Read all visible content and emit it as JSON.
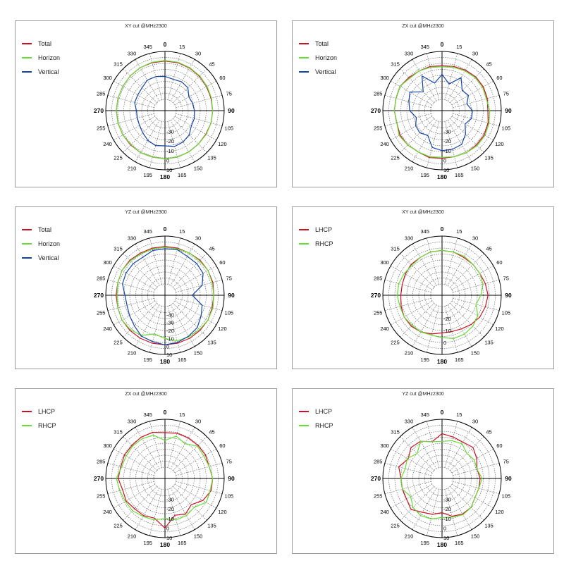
{
  "panels": [
    {
      "title": "XY cut @MHz2300",
      "legend": [
        {
          "label": "Total",
          "color": "#cc1122"
        },
        {
          "label": "Horizon",
          "color": "#66dd33"
        },
        {
          "label": "Vertical",
          "color": "#1144aa"
        }
      ]
    },
    {
      "title": "ZX cut @MHz2300",
      "legend": [
        {
          "label": "Total",
          "color": "#cc1122"
        },
        {
          "label": "Horizon",
          "color": "#66dd33"
        },
        {
          "label": "Vertical",
          "color": "#1144aa"
        }
      ]
    },
    {
      "title": "YZ cut @MHz2300",
      "legend": [
        {
          "label": "Total",
          "color": "#cc1122"
        },
        {
          "label": "Horizon",
          "color": "#66dd33"
        },
        {
          "label": "Vertical",
          "color": "#1144aa"
        }
      ]
    },
    {
      "title": "XY cut @MHz2300",
      "legend": [
        {
          "label": "LHCP",
          "color": "#cc1122"
        },
        {
          "label": "RHCP",
          "color": "#66dd33"
        }
      ]
    },
    {
      "title": "ZX cut @MHz2300",
      "legend": [
        {
          "label": "LHCP",
          "color": "#cc1122"
        },
        {
          "label": "RHCP",
          "color": "#66dd33"
        }
      ]
    },
    {
      "title": "YZ cut @MHz2300",
      "legend": [
        {
          "label": "LHCP",
          "color": "#cc1122"
        },
        {
          "label": "RHCP",
          "color": "#66dd33"
        }
      ]
    }
  ],
  "chart_data": [
    {
      "type": "polar-line",
      "title": "XY cut @MHz2300",
      "angles_deg": [
        0,
        15,
        30,
        45,
        60,
        75,
        90,
        105,
        120,
        135,
        150,
        165,
        180,
        195,
        210,
        225,
        240,
        255,
        270,
        285,
        300,
        315,
        330,
        345
      ],
      "angle_labels": [
        "0",
        "15",
        "30",
        "45",
        "60",
        "75",
        "90",
        "105",
        "120",
        "135",
        "150",
        "165",
        "180",
        "195",
        "210",
        "225",
        "240",
        "255",
        "270",
        "285",
        "300",
        "315",
        "330",
        "345"
      ],
      "rlim": [
        -40,
        10
      ],
      "radial_ticks": [
        -30,
        -20,
        -10,
        0,
        10
      ],
      "series": [
        {
          "name": "Total",
          "color": "#cc1122",
          "values": [
            0,
            0,
            -0.5,
            -1,
            -1.5,
            -2,
            -2,
            -2,
            -2.5,
            -2.5,
            -2,
            -1.5,
            -1.5,
            -1.5,
            -1,
            -1,
            -1,
            -1,
            -1,
            -1,
            -1,
            -0.5,
            0,
            0
          ]
        },
        {
          "name": "Horizon",
          "color": "#66dd33",
          "values": [
            0.5,
            0.5,
            0,
            -0.5,
            -1,
            -1.5,
            -2,
            -2,
            -2,
            -2.5,
            -2,
            -1.5,
            -1.5,
            -1.5,
            -1,
            -1.5,
            -1,
            -1,
            -1,
            -1,
            -1,
            -0.5,
            0,
            0.5
          ]
        },
        {
          "name": "Vertical",
          "color": "#1144aa",
          "values": [
            -16,
            -18,
            -17,
            -18,
            -23,
            -22,
            -21,
            -20,
            -20,
            -16,
            -14,
            -13,
            -15,
            -14,
            -16,
            -19,
            -21,
            -22,
            -22,
            -19,
            -19,
            -18,
            -15,
            -15
          ]
        }
      ]
    },
    {
      "type": "polar-line",
      "title": "ZX cut @MHz2300",
      "angles_deg": [
        0,
        15,
        30,
        45,
        60,
        75,
        90,
        105,
        120,
        135,
        150,
        165,
        180,
        195,
        210,
        225,
        240,
        255,
        270,
        285,
        300,
        315,
        330,
        345
      ],
      "angle_labels": [
        "0",
        "15",
        "30",
        "45",
        "60",
        "75",
        "90",
        "105",
        "120",
        "135",
        "150",
        "165",
        "180",
        "195",
        "210",
        "225",
        "240",
        "255",
        "270",
        "285",
        "300",
        "315",
        "330",
        "345"
      ],
      "rlim": [
        -40,
        10
      ],
      "radial_ticks": [
        -30,
        -20,
        -10,
        0,
        10
      ],
      "series": [
        {
          "name": "Total",
          "color": "#cc1122",
          "values": [
            -5,
            -4,
            -3,
            -2,
            -2,
            -3,
            -4,
            -2,
            -1,
            -1,
            -1,
            -2,
            -2,
            -1,
            -2,
            -1,
            -1,
            -3,
            -2,
            -2,
            -1,
            -3,
            -4,
            -4
          ]
        },
        {
          "name": "Horizon",
          "color": "#66dd33",
          "values": [
            -6,
            -5,
            -4,
            -3,
            -3,
            -4,
            -2,
            -1,
            0,
            0,
            -1,
            -2,
            -3,
            -2,
            -2,
            -1,
            0,
            -3,
            -2,
            -2,
            -1,
            -4,
            -4,
            -5
          ]
        },
        {
          "name": "Vertical",
          "color": "#1144aa",
          "values": [
            -14,
            -23,
            -12,
            -22,
            -20,
            -25,
            -20,
            -20,
            -24,
            -17,
            -11,
            -10,
            -10,
            -12,
            -22,
            -19,
            -20,
            -24,
            -18,
            -16,
            -13,
            -24,
            -10,
            -22
          ]
        }
      ]
    },
    {
      "type": "polar-line",
      "title": "YZ cut @MHz2300",
      "angles_deg": [
        0,
        15,
        30,
        45,
        60,
        75,
        90,
        105,
        120,
        135,
        150,
        165,
        180,
        195,
        210,
        225,
        240,
        255,
        270,
        285,
        300,
        315,
        330,
        345
      ],
      "angle_labels": [
        "0",
        "15",
        "30",
        "45",
        "60",
        "75",
        "90",
        "105",
        "120",
        "135",
        "150",
        "165",
        "180",
        "195",
        "210",
        "225",
        "240",
        "255",
        "270",
        "285",
        "300",
        "315",
        "330",
        "345"
      ],
      "rlim": [
        -50,
        10
      ],
      "radial_ticks": [
        -40,
        -30,
        -20,
        -10,
        0,
        10
      ],
      "series": [
        {
          "name": "Total",
          "color": "#cc1122",
          "values": [
            -3,
            -3,
            -3,
            -2,
            -2,
            -2,
            -3,
            -3,
            -2,
            -2,
            -2,
            -2,
            -2,
            -2,
            -2,
            -2,
            -2,
            -3,
            -3,
            -3,
            -2,
            -2,
            -3,
            -3
          ]
        },
        {
          "name": "Horizon",
          "color": "#66dd33",
          "values": [
            -4,
            -4,
            -3,
            -3,
            -2,
            -3,
            -3,
            -2,
            -2,
            -3,
            -4,
            -5,
            -10,
            -14,
            -6,
            -3,
            -2,
            -3,
            -4,
            -3,
            -2,
            -3,
            -4,
            -4
          ]
        },
        {
          "name": "Vertical",
          "color": "#1144aa",
          "values": [
            -6,
            -5,
            -8,
            -8,
            -9,
            -16,
            -30,
            -16,
            -12,
            -7,
            -5,
            -3,
            -2,
            -4,
            -5,
            -10,
            -13,
            -15,
            -14,
            -9,
            -8,
            -8,
            -9,
            -6
          ]
        }
      ]
    },
    {
      "type": "polar-line",
      "title": "XY cut @MHz2300",
      "angles_deg": [
        0,
        15,
        30,
        45,
        60,
        75,
        90,
        105,
        120,
        135,
        150,
        165,
        180,
        195,
        210,
        225,
        240,
        255,
        270,
        285,
        300,
        315,
        330,
        345
      ],
      "angle_labels": [
        "0",
        "15",
        "30",
        "45",
        "60",
        "75",
        "90",
        "105",
        "120",
        "135",
        "150",
        "165",
        "180",
        "195",
        "210",
        "225",
        "240",
        "255",
        "270",
        "285",
        "300",
        "315",
        "330",
        "345"
      ],
      "rlim": [
        -30,
        10
      ],
      "radial_ticks": [
        -20,
        -10,
        0
      ],
      "series": [
        {
          "name": "LHCP",
          "color": "#cc1122",
          "values": [
            -2,
            -2,
            -3,
            -3,
            -3,
            -2,
            -1,
            -2,
            -3,
            -5,
            -7,
            -8,
            -8,
            -6,
            -4,
            -3,
            -3,
            -4,
            -5,
            -5,
            -4,
            -3,
            -3,
            -2
          ]
        },
        {
          "name": "RHCP",
          "color": "#66dd33",
          "values": [
            -2,
            -2,
            -2,
            -3,
            -3,
            -4,
            -7,
            -10,
            -5,
            -3,
            -2,
            -2,
            -4,
            -5,
            -4,
            -4,
            -3,
            -3,
            -2,
            -2,
            -3,
            -4,
            -3,
            -2
          ]
        }
      ]
    },
    {
      "type": "polar-line",
      "title": "ZX cut @MHz2300",
      "angles_deg": [
        0,
        15,
        30,
        45,
        60,
        75,
        90,
        105,
        120,
        135,
        150,
        165,
        180,
        195,
        210,
        225,
        240,
        255,
        270,
        285,
        300,
        315,
        330,
        345
      ],
      "angle_labels": [
        "0",
        "15",
        "30",
        "45",
        "60",
        "75",
        "90",
        "105",
        "120",
        "135",
        "150",
        "165",
        "180",
        "195",
        "210",
        "225",
        "240",
        "255",
        "270",
        "285",
        "300",
        "315",
        "330",
        "345"
      ],
      "rlim": [
        -40,
        10
      ],
      "radial_ticks": [
        -30,
        -20,
        -10,
        0,
        10
      ],
      "series": [
        {
          "name": "LHCP",
          "color": "#cc1122",
          "values": [
            -4,
            -3,
            -3,
            -3,
            -3,
            -4,
            -2,
            -2,
            -6,
            -13,
            -9,
            -12,
            0,
            -9,
            -7,
            -7,
            -5,
            -6,
            -3,
            -4,
            -3,
            -3,
            -2,
            -2
          ]
        },
        {
          "name": "RHCP",
          "color": "#66dd33",
          "values": [
            -12,
            -6,
            -10,
            -4,
            -5,
            -4,
            -2,
            -3,
            -2,
            -9,
            -7,
            -7,
            -10,
            -7,
            -6,
            -4,
            -4,
            -3,
            -1,
            -5,
            -5,
            -4,
            -4,
            -5
          ]
        }
      ]
    },
    {
      "type": "polar-line",
      "title": "YZ cut @MHz2300",
      "angles_deg": [
        0,
        15,
        30,
        45,
        60,
        75,
        90,
        105,
        120,
        135,
        150,
        165,
        180,
        195,
        210,
        225,
        240,
        255,
        270,
        285,
        300,
        315,
        330,
        345
      ],
      "angle_labels": [
        "0",
        "15",
        "30",
        "45",
        "60",
        "75",
        "90",
        "105",
        "120",
        "135",
        "150",
        "165",
        "180",
        "195",
        "210",
        "225",
        "240",
        "255",
        "270",
        "285",
        "300",
        "315",
        "330",
        "345"
      ],
      "rlim": [
        -40,
        10
      ],
      "radial_ticks": [
        -30,
        -20,
        -10,
        0,
        10
      ],
      "series": [
        {
          "name": "LHCP",
          "color": "#cc1122",
          "values": [
            -5,
            -7,
            -8,
            -6,
            -10,
            -14,
            -12,
            -12,
            -12,
            -9,
            -9,
            -11,
            -16,
            -13,
            -11,
            -6,
            -9,
            -9,
            -9,
            -5,
            -11,
            -6,
            -7,
            -12
          ]
        },
        {
          "name": "RHCP",
          "color": "#66dd33",
          "values": [
            -13,
            -11,
            -10,
            -15,
            -13,
            -14,
            -10,
            -12,
            -12,
            -9,
            -8,
            -10,
            -11,
            -8,
            -7,
            -9,
            -14,
            -9,
            -9,
            -12,
            -10,
            -15,
            -7,
            -12
          ]
        }
      ]
    }
  ]
}
